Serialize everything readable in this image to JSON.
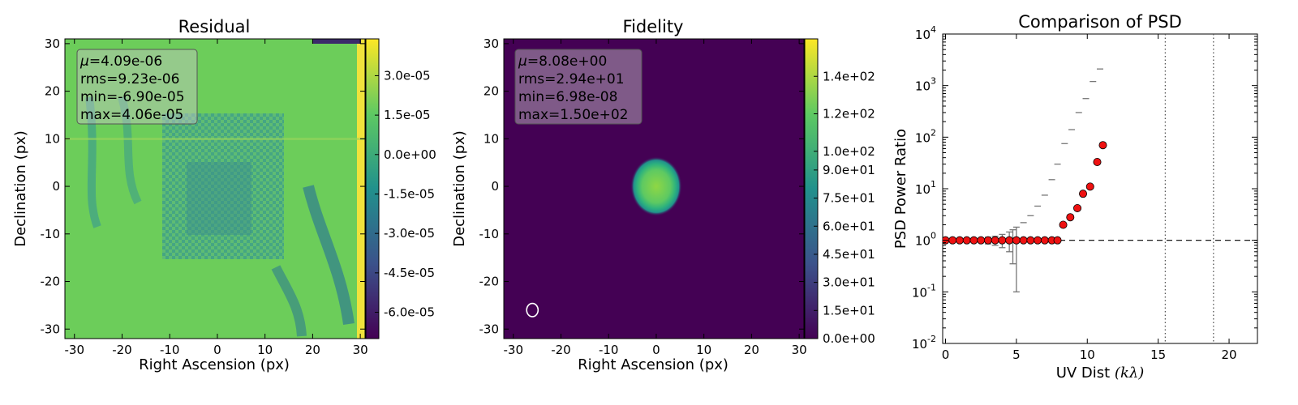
{
  "chart_data": [
    {
      "type": "heatmap",
      "title": "Residual",
      "xlabel": "Right Ascension (px)",
      "ylabel": "Declination (px)",
      "xlim": [
        -32,
        31
      ],
      "ylim": [
        -32,
        31
      ],
      "x_ticks": [
        "-30",
        "-20",
        "-10",
        "0",
        "10",
        "20",
        "30"
      ],
      "y_ticks": [
        "30",
        "20",
        "10",
        "0",
        "-10",
        "-20",
        "-30"
      ],
      "colorbar": {
        "range": [
          -7e-05,
          4.4e-05
        ],
        "ticks": [
          3e-05,
          1.5e-05,
          0.0,
          -1.5e-05,
          -3e-05,
          -4.5e-05,
          -6e-05
        ],
        "tick_labels": [
          "3.0e-05",
          "1.5e-05",
          "0.0e+00",
          "-1.5e-05",
          "-3.0e-05",
          "-4.5e-05",
          "-6.0e-05"
        ]
      },
      "stats": {
        "mu": "=4.09e-06",
        "rms": "rms=9.23e-06",
        "min": "min=-6.90e-05",
        "max": "max=4.06e-05"
      }
    },
    {
      "type": "heatmap",
      "title": "Fidelity",
      "xlabel": "Right Ascension (px)",
      "ylabel": "Declination (px)",
      "xlim": [
        -32,
        31
      ],
      "ylim": [
        -32,
        31
      ],
      "x_ticks": [
        "-30",
        "-20",
        "-10",
        "0",
        "10",
        "20",
        "30"
      ],
      "y_ticks": [
        "30",
        "20",
        "10",
        "0",
        "-10",
        "-20",
        "-30"
      ],
      "colorbar": {
        "range": [
          0,
          160
        ],
        "ticks": [
          140,
          120,
          100,
          90,
          75,
          60,
          45,
          30,
          15,
          0
        ],
        "tick_labels": [
          "1.4e+02",
          "1.2e+02",
          "1.0e+02",
          "9.0e+01",
          "7.5e+01",
          "6.0e+01",
          "4.5e+01",
          "3.0e+01",
          "1.5e+01",
          "0.0e+00"
        ]
      },
      "stats": {
        "mu": "=8.08e+00",
        "rms": "rms=2.94e+01",
        "min": "min=6.98e-08",
        "max": "max=1.50e+02"
      },
      "source": {
        "x": 0,
        "y": 0,
        "rx": 4,
        "ry": 5,
        "peak": 150
      },
      "beam": {
        "x": -26,
        "y": -26,
        "rx": 1.2,
        "ry": 1.4
      }
    },
    {
      "type": "scatter",
      "title": "Comparison of PSD",
      "xlabel_prefix": "UV Dist ",
      "xlabel_math": "(kλ)",
      "ylabel": "PSD Power Ratio",
      "xlim": [
        -0.2,
        22
      ],
      "ylim": [
        0.01,
        10000
      ],
      "log_y": true,
      "x_ticks": [
        "0",
        "5",
        "10",
        "15",
        "20"
      ],
      "y_ticks_base": "10",
      "y_ticks_exp": [
        "4",
        "3",
        "2",
        "1",
        "0",
        "-1",
        "-2"
      ],
      "reference_line": 1,
      "vlines": [
        15.5,
        18.9
      ],
      "points": {
        "x": [
          0,
          0.5,
          1.0,
          1.5,
          2.0,
          2.5,
          3.0,
          3.5,
          4.0,
          4.5,
          5.0,
          5.5,
          6.0,
          6.5,
          7.0,
          7.5,
          7.9,
          8.3,
          8.8,
          9.3,
          9.7,
          10.2,
          10.7,
          11.1
        ],
        "y": [
          1,
          1,
          1,
          1,
          1,
          1,
          1,
          1,
          1,
          1,
          1,
          1,
          1,
          1,
          1,
          1,
          1,
          2,
          2.8,
          4.2,
          8,
          11,
          33,
          70
        ]
      },
      "error_bars": [
        {
          "x": 3.0,
          "lo": 0.85,
          "hi": 1.15
        },
        {
          "x": 3.5,
          "lo": 0.8,
          "hi": 1.2
        },
        {
          "x": 4.0,
          "lo": 0.72,
          "hi": 1.3
        },
        {
          "x": 4.5,
          "lo": 0.6,
          "hi": 1.45
        },
        {
          "x": 5.0,
          "lo": 0.1,
          "hi": 1.8
        },
        {
          "x": 4.75,
          "lo": 0.35,
          "hi": 1.6
        }
      ],
      "gray_markers": {
        "x": [
          5.5,
          6.0,
          6.5,
          7.0,
          7.5,
          7.9,
          8.4,
          8.9,
          9.4,
          9.9,
          10.4,
          10.9
        ],
        "y": [
          2.2,
          3.0,
          4.6,
          7.5,
          15,
          30,
          75,
          140,
          300,
          560,
          1200,
          2100
        ]
      },
      "colors": {
        "points": "#ee1111",
        "gray": "#777777"
      }
    }
  ]
}
